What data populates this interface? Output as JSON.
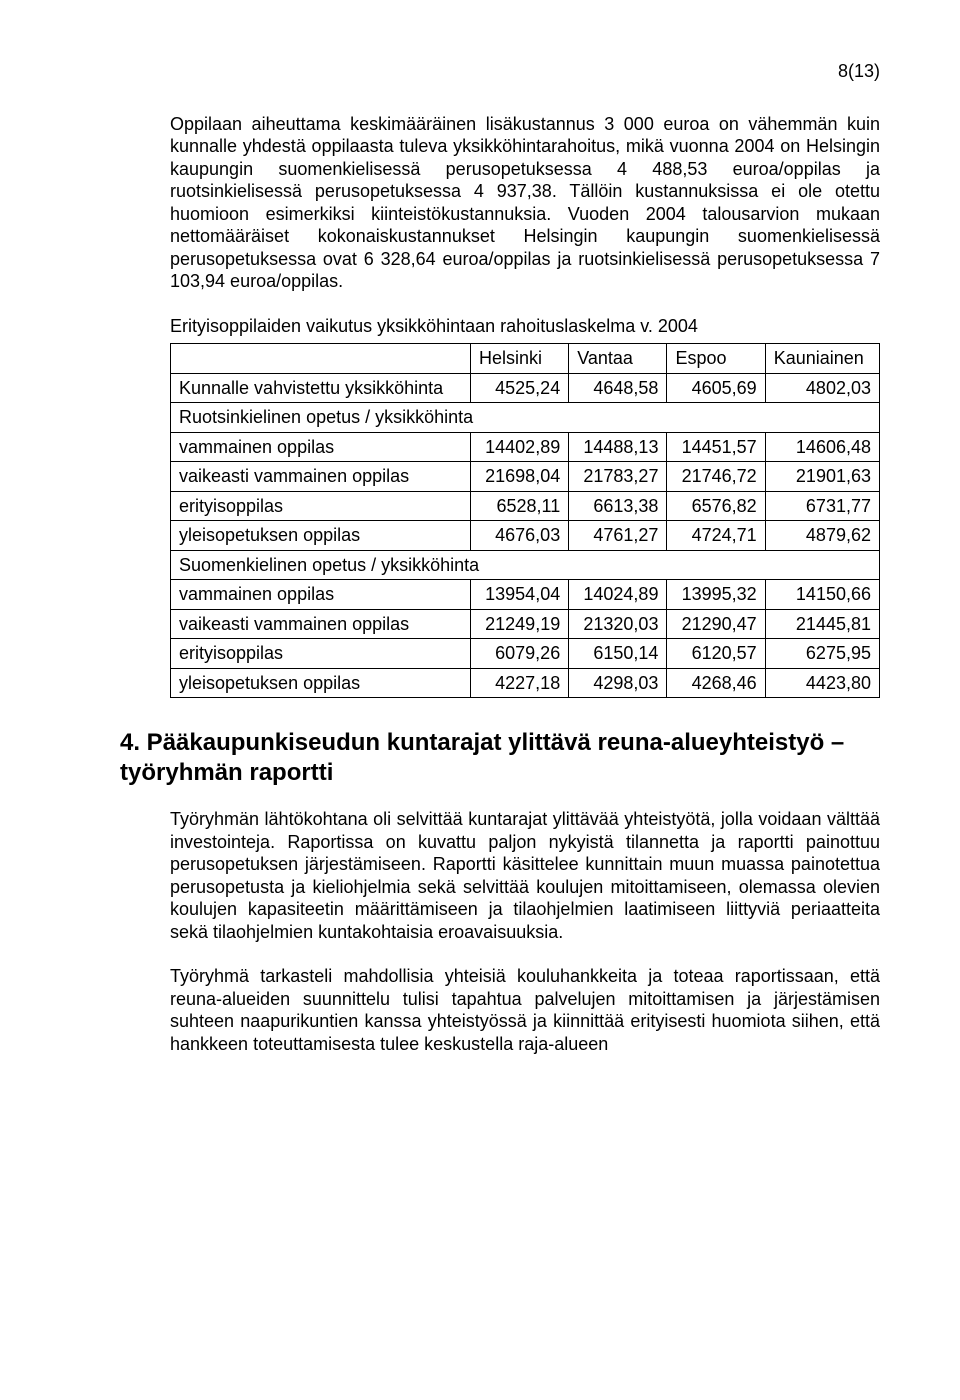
{
  "pageNumber": "8(13)",
  "para1": "Oppilaan aiheuttama keskimääräinen lisäkustannus 3 000 euroa on vähemmän kuin kunnalle yhdestä oppilaasta tuleva yksikköhintarahoitus, mikä vuonna 2004 on Helsingin kaupungin suomenkielisessä perusopetuksessa 4 488,53 euroa/oppilas ja ruotsinkielisessä perusopetuksessa 4 937,38. Tällöin kustannuksissa ei ole otettu huomioon esimerkiksi kiinteistökustannuksia. Vuoden 2004 talousarvion mukaan nettomääräiset kokonaiskustannukset Helsingin kaupungin suomenkielisessä perusopetuksessa ovat 6 328,64 euroa/oppilas ja ruotsinkielisessä perusopetuksessa 7 103,94 euroa/oppilas.",
  "tableCaption": "Erityisoppilaiden vaikutus yksikköhintaan rahoituslaskelma v. 2004",
  "table": {
    "headers": [
      "",
      "Helsinki",
      "Vantaa",
      "Espoo",
      "Kauniainen"
    ],
    "rows": [
      {
        "label": "Kunnalle vahvistettu yksikköhinta",
        "vals": [
          "4525,24",
          "4648,58",
          "4605,69",
          "4802,03"
        ]
      },
      {
        "label": "Ruotsinkielinen opetus / yksikköhinta",
        "section": true
      },
      {
        "label": "vammainen oppilas",
        "vals": [
          "14402,89",
          "14488,13",
          "14451,57",
          "14606,48"
        ]
      },
      {
        "label": "vaikeasti vammainen oppilas",
        "vals": [
          "21698,04",
          "21783,27",
          "21746,72",
          "21901,63"
        ]
      },
      {
        "label": "erityisoppilas",
        "vals": [
          "6528,11",
          "6613,38",
          "6576,82",
          "6731,77"
        ]
      },
      {
        "label": "yleisopetuksen oppilas",
        "vals": [
          "4676,03",
          "4761,27",
          "4724,71",
          "4879,62"
        ]
      },
      {
        "label": "Suomenkielinen opetus / yksikköhinta",
        "section": true
      },
      {
        "label": "vammainen oppilas",
        "vals": [
          "13954,04",
          "14024,89",
          "13995,32",
          "14150,66"
        ]
      },
      {
        "label": "vaikeasti vammainen oppilas",
        "vals": [
          "21249,19",
          "21320,03",
          "21290,47",
          "21445,81"
        ]
      },
      {
        "label": "erityisoppilas",
        "vals": [
          "6079,26",
          "6150,14",
          "6120,57",
          "6275,95"
        ]
      },
      {
        "label": "yleisopetuksen oppilas",
        "vals": [
          "4227,18",
          "4298,03",
          "4268,46",
          "4423,80"
        ]
      }
    ]
  },
  "sectionHeading": "4. Pääkaupunkiseudun kuntarajat ylittävä reuna-alueyhteistyö – työryhmän raportti",
  "para2": "Työryhmän lähtökohtana oli selvittää kuntarajat ylittävää yhteistyötä, jolla voidaan välttää investointeja. Raportissa on kuvattu paljon nykyistä tilannetta ja raportti painottuu perusopetuksen järjestämiseen. Raportti käsittelee kunnittain muun muassa painotettua perusopetusta ja kieliohjelmia sekä selvittää koulujen mitoittamiseen, olemassa olevien koulujen kapasiteetin määrittämiseen ja tilaohjelmien laatimiseen liittyviä periaatteita sekä tilaohjelmien kuntakohtaisia eroavaisuuksia.",
  "para3": "Työryhmä tarkasteli mahdollisia yhteisiä kouluhankkeita ja toteaa raportissaan, että reuna-alueiden suunnittelu tulisi tapahtua palvelujen mitoittamisen ja järjestämisen suhteen naapurikuntien kanssa yhteistyössä ja kiinnittää erityisesti huomiota siihen, että hankkeen toteuttamisesta tulee keskustella raja-alueen"
}
